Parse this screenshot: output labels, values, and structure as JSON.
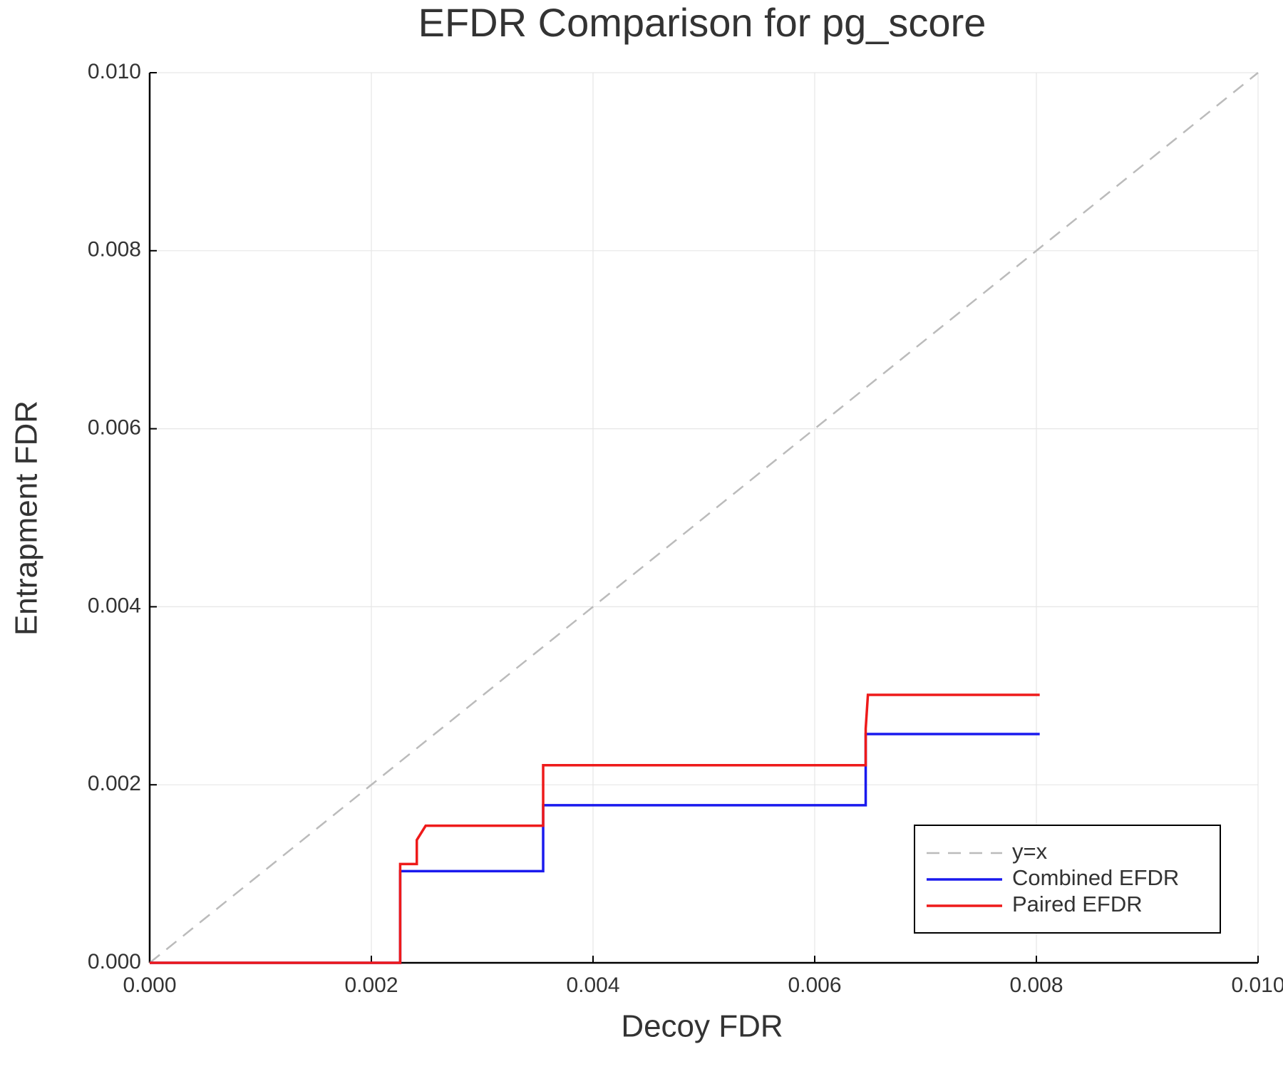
{
  "chart_data": {
    "type": "line",
    "title": "EFDR Comparison for pg_score",
    "xlabel": "Decoy FDR",
    "ylabel": "Entrapment FDR",
    "xlim": [
      0,
      0.01
    ],
    "ylim": [
      0,
      0.01
    ],
    "xticks": [
      {
        "value": 0,
        "label": "0.000"
      },
      {
        "value": 0.002,
        "label": "0.002"
      },
      {
        "value": 0.004,
        "label": "0.004"
      },
      {
        "value": 0.006,
        "label": "0.006"
      },
      {
        "value": 0.008,
        "label": "0.008"
      },
      {
        "value": 0.01,
        "label": "0.010"
      }
    ],
    "yticks": [
      {
        "value": 0,
        "label": "0.000"
      },
      {
        "value": 0.002,
        "label": "0.002"
      },
      {
        "value": 0.004,
        "label": "0.004"
      },
      {
        "value": 0.006,
        "label": "0.006"
      },
      {
        "value": 0.008,
        "label": "0.008"
      },
      {
        "value": 0.01,
        "label": "0.010"
      }
    ],
    "grid": true,
    "legend": "lower right",
    "series": [
      {
        "name": "y=x",
        "color": "#bbbbbb",
        "dash": true,
        "x": [
          0,
          0.01
        ],
        "values": [
          0,
          0.01
        ]
      },
      {
        "name": "Combined EFDR",
        "color": "#1a1aee",
        "x": [
          0,
          0.00226,
          0.00226,
          0.00355,
          0.00355,
          0.00646,
          0.00646,
          0.00648,
          0.00803
        ],
        "values": [
          0,
          0,
          0.00103,
          0.00103,
          0.00177,
          0.00177,
          0.00257,
          0.00257,
          0.00257
        ]
      },
      {
        "name": "Paired EFDR",
        "color": "#ee1a1a",
        "x": [
          0,
          0.00226,
          0.00226,
          0.00241,
          0.00241,
          0.00249,
          0.00355,
          0.00355,
          0.00646,
          0.00646,
          0.00648,
          0.00803
        ],
        "values": [
          0,
          0,
          0.00111,
          0.00111,
          0.00138,
          0.00154,
          0.00154,
          0.00222,
          0.00222,
          0.00263,
          0.00301,
          0.00301
        ]
      }
    ]
  }
}
